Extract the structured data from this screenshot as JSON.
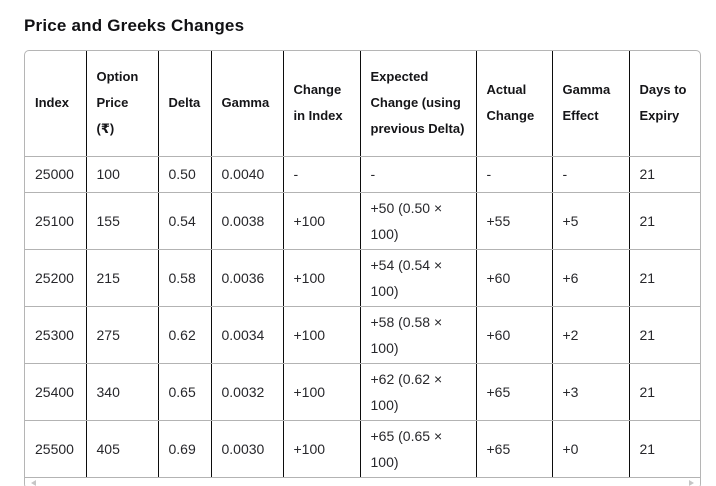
{
  "page": {
    "title": "Price and Greeks Changes"
  },
  "table": {
    "columns": [
      {
        "key": "index",
        "label": "Index"
      },
      {
        "key": "option-price",
        "label": "Option Price (₹)"
      },
      {
        "key": "delta",
        "label": "Delta"
      },
      {
        "key": "gamma",
        "label": "Gamma"
      },
      {
        "key": "change-in-index",
        "label": "Change in Index"
      },
      {
        "key": "expected-change",
        "label": "Expected Change (using previous Delta)"
      },
      {
        "key": "actual-change",
        "label": "Actual Change"
      },
      {
        "key": "gamma-effect",
        "label": "Gamma Effect"
      },
      {
        "key": "days-to-expiry",
        "label": "Days to Expiry"
      }
    ],
    "rows": [
      [
        "25000",
        "100",
        "0.50",
        "0.0040",
        "-",
        "-",
        "-",
        "-",
        "21"
      ],
      [
        "25100",
        "155",
        "0.54",
        "0.0038",
        "+100",
        "+50 (0.50 × 100)",
        "+55",
        "+5",
        "21"
      ],
      [
        "25200",
        "215",
        "0.58",
        "0.0036",
        "+100",
        "+54 (0.54 × 100)",
        "+60",
        "+6",
        "21"
      ],
      [
        "25300",
        "275",
        "0.62",
        "0.0034",
        "+100",
        "+58 (0.58 × 100)",
        "+60",
        "+2",
        "21"
      ],
      [
        "25400",
        "340",
        "0.65",
        "0.0032",
        "+100",
        "+62 (0.62 × 100)",
        "+65",
        "+3",
        "21"
      ],
      [
        "25500",
        "405",
        "0.69",
        "0.0030",
        "+100",
        "+65 (0.65 × 100)",
        "+65",
        "+0",
        "21"
      ]
    ]
  },
  "scrollbar": {
    "left_icon": "scroll-left-arrow",
    "right_icon": "scroll-right-arrow"
  },
  "colors": {
    "title_text": "#111114",
    "header_text": "#151518",
    "body_text": "#27272b",
    "vertical_grid": "#0c0c0c",
    "horizontal_grid": "#b3b3b3",
    "container_border": "#b5b5b5",
    "scroll_arrow": "#c6c6c6",
    "background": "#ffffff"
  }
}
